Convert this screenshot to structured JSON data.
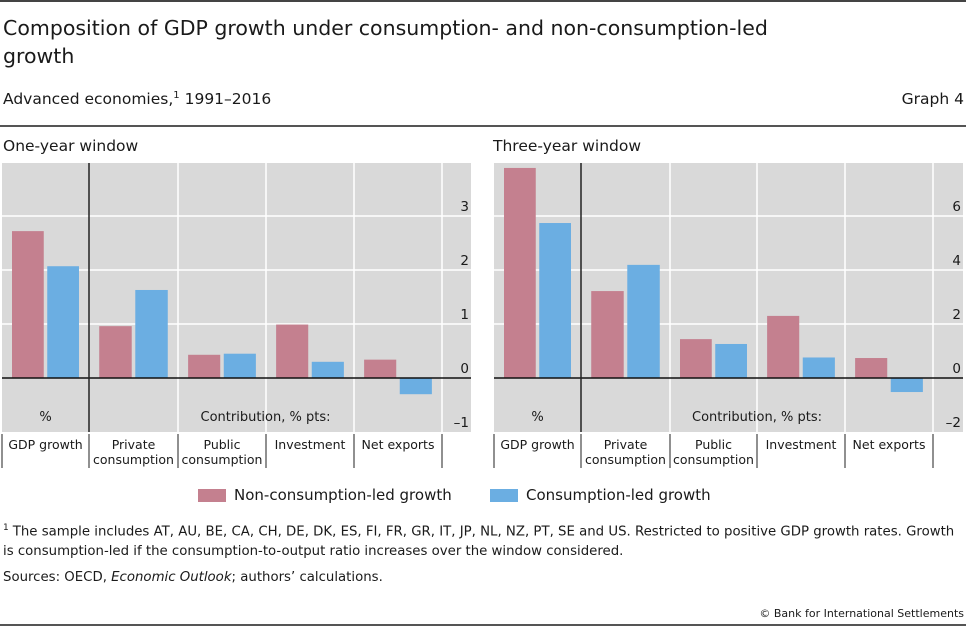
{
  "header": {
    "title": "Composition of GDP growth under consumption- and non-consumption-led growth",
    "subtitle": "Advanced economies,",
    "subtitle_footnote_ref": "1",
    "subtitle_period": "1991–2016",
    "graph_label": "Graph 4"
  },
  "colors": {
    "non_consumption_led": "#C4808F",
    "consumption_led": "#6BAEE2",
    "plot_background": "#D9D9D9"
  },
  "legend": [
    {
      "label": "Non-consumption-led growth",
      "color": "#C4808F"
    },
    {
      "label": "Consumption-led growth",
      "color": "#6BAEE2"
    }
  ],
  "chart_data": [
    {
      "type": "bar",
      "title": "One-year window",
      "categories": [
        "GDP growth",
        "Private consumption",
        "Public consumption",
        "Investment",
        "Net exports"
      ],
      "category_lines": [
        [
          "GDP growth"
        ],
        [
          "Private",
          "consumption"
        ],
        [
          "Public",
          "consumption"
        ],
        [
          "Investment"
        ],
        [
          "Net exports"
        ]
      ],
      "series": [
        {
          "name": "Non-consumption-led growth",
          "values": [
            2.72,
            0.96,
            0.43,
            0.99,
            0.34
          ]
        },
        {
          "name": "Consumption-led growth",
          "values": [
            2.07,
            1.63,
            0.45,
            0.3,
            -0.3
          ]
        }
      ],
      "ylim": [
        -1,
        4
      ],
      "yticks": [
        -1,
        0,
        1,
        2,
        3
      ],
      "ytick_labels": [
        "–1",
        "0",
        "1",
        "2",
        "3"
      ],
      "y_axis_side": "right",
      "grid": true,
      "inner_labels": {
        "left_unit": "%",
        "right_unit": "Contribution, % pts:"
      }
    },
    {
      "type": "bar",
      "title": "Three-year window",
      "categories": [
        "GDP growth",
        "Private consumption",
        "Public consumption",
        "Investment",
        "Net exports"
      ],
      "category_lines": [
        [
          "GDP growth"
        ],
        [
          "Private",
          "consumption"
        ],
        [
          "Public",
          "consumption"
        ],
        [
          "Investment"
        ],
        [
          "Net exports"
        ]
      ],
      "series": [
        {
          "name": "Non-consumption-led growth",
          "values": [
            7.78,
            3.22,
            1.44,
            2.3,
            0.74
          ]
        },
        {
          "name": "Consumption-led growth",
          "values": [
            5.74,
            4.19,
            1.26,
            0.76,
            -0.52
          ]
        }
      ],
      "ylim": [
        -2,
        8
      ],
      "yticks": [
        -2,
        0,
        2,
        4,
        6
      ],
      "ytick_labels": [
        "–2",
        "0",
        "2",
        "4",
        "6"
      ],
      "y_axis_side": "right",
      "grid": true,
      "inner_labels": {
        "left_unit": "%",
        "right_unit": "Contribution, % pts:"
      }
    }
  ],
  "footnote": {
    "ref": "1",
    "text": "The sample includes AT, AU, BE, CA, CH, DE, DK, ES, FI, FR, GR, IT, JP, NL, NZ, PT, SE and US. Restricted to positive GDP growth rates. Growth is consumption-led if the consumption-to-output ratio increases over the window considered."
  },
  "sources": {
    "prefix": "Sources: OECD, ",
    "publication": "Economic Outlook",
    "suffix": "; authors’ calculations."
  },
  "copyright": "© Bank for International Settlements"
}
